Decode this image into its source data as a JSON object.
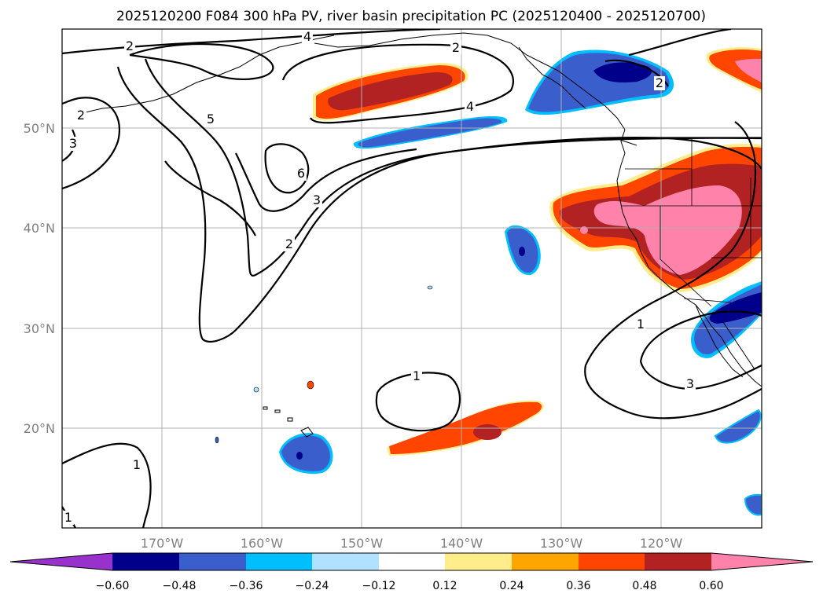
{
  "title": "2025120200 F084 300 hPa PV, river basin precipitation PC (2025120400 - 2025120700)",
  "lat_labels": [
    "50°N",
    "40°N",
    "30°N",
    "20°N"
  ],
  "lon_labels": [
    "170°W",
    "160°W",
    "150°W",
    "140°W",
    "130°W",
    "120°W"
  ],
  "colorbar": {
    "levels": [
      "−0.60",
      "−0.48",
      "−0.36",
      "−0.24",
      "−0.12",
      "0.12",
      "0.24",
      "0.36",
      "0.48",
      "0.60"
    ],
    "colors": [
      "#9932cc",
      "#00008b",
      "#3a5fcd",
      "#00bfff",
      "#b0e2ff",
      "#ffffff",
      "#ffec8b",
      "#ffa500",
      "#ff4500",
      "#b22222",
      "#ff82ab"
    ]
  },
  "contour_labels": [
    "2",
    "4",
    "2",
    "2",
    "5",
    "3",
    "6",
    "3",
    "2",
    "4",
    "2",
    "1",
    "3",
    "1",
    "1",
    "1"
  ],
  "colors": {
    "dark_red": "#b22222",
    "red_orange": "#ff4500",
    "orange": "#ffa500",
    "yellow": "#ffec8b",
    "pink": "#ff82ab",
    "dark_blue": "#00008b",
    "blue": "#3a5fcd",
    "light_blue": "#00bfff"
  }
}
